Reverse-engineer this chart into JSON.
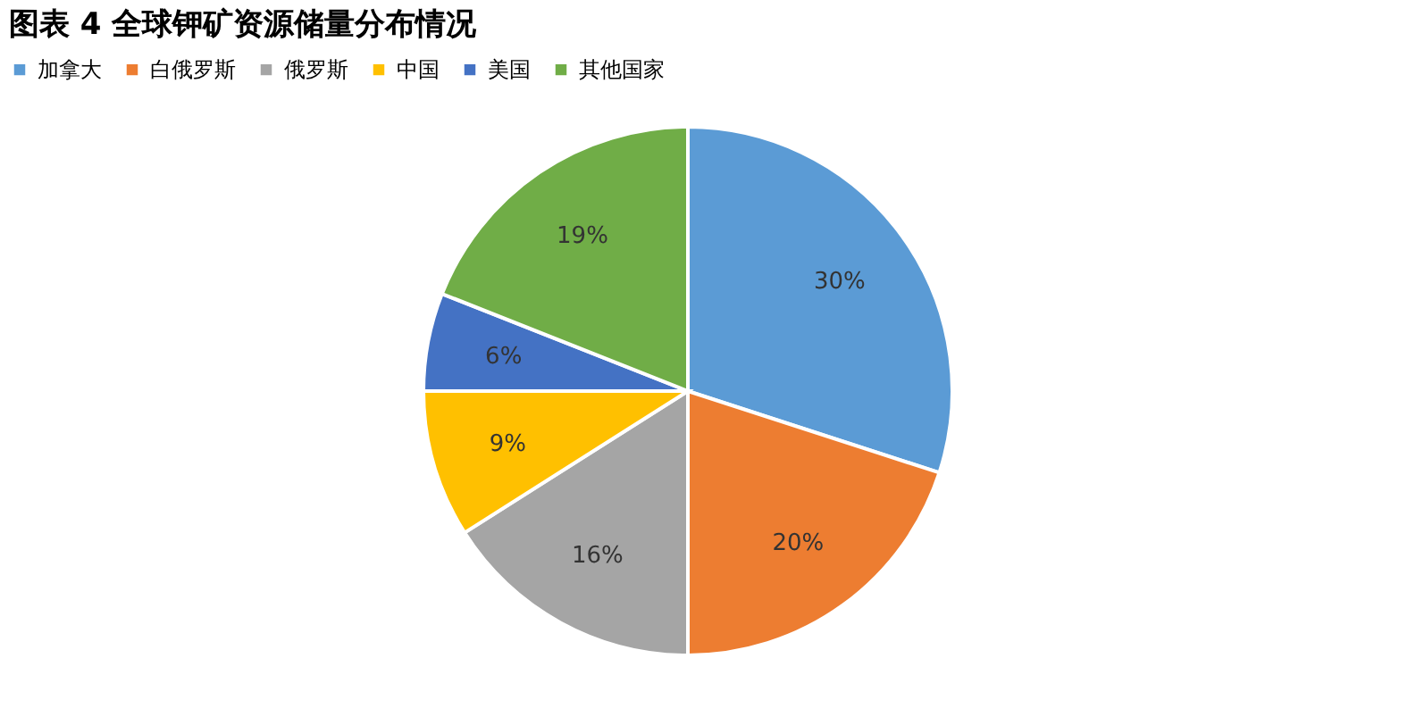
{
  "chart_data": {
    "type": "pie",
    "title": "图表 4  全球钾矿资源储量分布情况",
    "categories": [
      "加拿大",
      "白俄罗斯",
      "俄罗斯",
      "中国",
      "美国",
      "其他国家"
    ],
    "values": [
      30,
      20,
      16,
      9,
      6,
      19
    ],
    "value_labels": [
      "30%",
      "20%",
      "16%",
      "9%",
      "6%",
      "19%"
    ],
    "colors": [
      "#5b9bd5",
      "#ed7d31",
      "#a5a5a5",
      "#ffc000",
      "#4472c4",
      "#70ad47"
    ],
    "legend": "top"
  }
}
